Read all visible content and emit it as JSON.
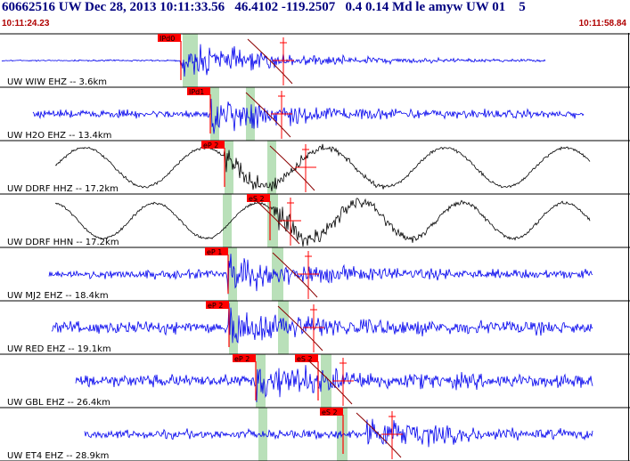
{
  "header": {
    "title": "60662516 UW Dec 28, 2013 10:11:33.56   46.4102 -119.2507   0.4 0.14 Md le amyw UW 01    5",
    "start_time": "10:11:24.23",
    "end_time": "10:11:58.84"
  },
  "colors": {
    "trace_blue": "#0000ee",
    "trace_black": "#000000",
    "pick_red": "#ff0000",
    "pick_window_green": "#b9e0b9",
    "origin_curve": "#8b0000",
    "grid_line": "#000000"
  },
  "traces": [
    {
      "label": "UW WIW EHZ -- 3.6km",
      "color": "blue",
      "pick": "IPd0",
      "pick2": ""
    },
    {
      "label": "UW H2O EHZ -- 13.4km",
      "color": "blue",
      "pick": "IPd1",
      "pick2": ""
    },
    {
      "label": "UW DDRF HHZ -- 17.2km",
      "color": "black",
      "pick": "eP 2",
      "pick2": ""
    },
    {
      "label": "UW DDRF HHN -- 17.2km",
      "color": "black",
      "pick": "eS 2",
      "pick2": ""
    },
    {
      "label": "UW MJ2 EHZ -- 18.4km",
      "color": "blue",
      "pick": "eP 1",
      "pick2": ""
    },
    {
      "label": "UW RED EHZ -- 19.1km",
      "color": "blue",
      "pick": "eP 2",
      "pick2": ""
    },
    {
      "label": "UW GBL EHZ -- 26.4km",
      "color": "blue",
      "pick": "eP 2",
      "pick2": "eS 2"
    },
    {
      "label": "UW ET4 EHZ -- 28.9km",
      "color": "blue",
      "pick": "",
      "pick2": "eS 2"
    }
  ]
}
